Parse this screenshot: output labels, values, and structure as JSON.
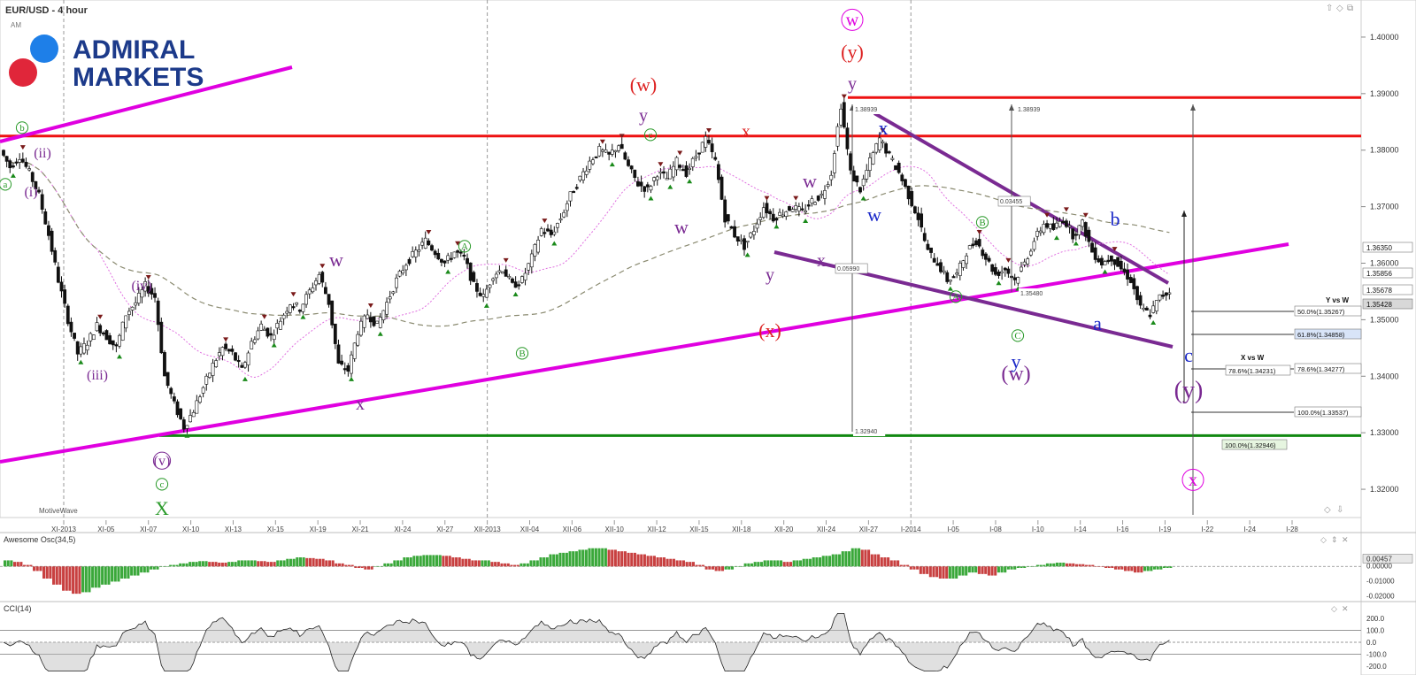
{
  "header": {
    "symbol": "EUR/USD - 4 hour",
    "sub": "AM"
  },
  "logo": {
    "line1": "ADMIRAL",
    "line2": "MARKETS"
  },
  "watermark": "MotiveWave",
  "colors": {
    "bull_candle": "#ffffff",
    "bear_candle": "#111111",
    "magenta": "#e000e0",
    "red_line": "#ee1111",
    "green_line": "#118811",
    "purple": "#7a2a92",
    "blue_wave": "#1a28c8",
    "red_wave": "#dd2222",
    "green_circle": "#2a9a2a",
    "logo_blue": "#1c3a8a",
    "logo_dot_blue": "#1e7fe8",
    "logo_dot_red": "#e0263a"
  },
  "chart_data": {
    "type": "candlestick",
    "title": "EUR/USD - 4 hour",
    "ylim": [
      1.315,
      1.405
    ],
    "y_ticks": [
      "1.40000",
      "1.39000",
      "1.38000",
      "1.37000",
      "1.36000",
      "1.35000",
      "1.34000",
      "1.33000",
      "1.32000"
    ],
    "price_badges": [
      "1.36350",
      "1.35856",
      "1.35678",
      "1.35428"
    ],
    "x_labels": [
      "XI-2013",
      "XI-05",
      "XI-07",
      "XI-10",
      "XI-13",
      "XI-15",
      "XI-19",
      "XI-21",
      "XI-24",
      "XI-27",
      "XII-2013",
      "XII-04",
      "XII-06",
      "XII-10",
      "XII-12",
      "XII-15",
      "XII-18",
      "XII-20",
      "XII-24",
      "XII-27",
      "I-2014",
      "I-05",
      "I-08",
      "I-10",
      "I-14",
      "I-16",
      "I-19",
      "I-22",
      "I-24",
      "I-28"
    ],
    "price_path": [
      [
        1.38,
        1.377,
        1.379,
        1.376,
        1.372,
        1.365,
        1.357,
        1.35,
        1.344,
        1.346,
        1.349,
        1.347,
        1.345,
        1.351,
        1.353,
        1.356,
        1.354,
        1.34,
        1.335,
        1.331,
        1.334,
        1.338,
        1.342,
        1.345,
        1.344,
        1.341,
        1.346,
        1.349,
        1.347,
        1.35,
        1.353,
        1.352,
        1.355,
        1.358,
        1.353,
        1.342,
        1.341,
        1.348,
        1.351,
        1.349,
        1.353,
        1.357,
        1.36,
        1.362,
        1.364,
        1.362,
        1.36,
        1.362,
        1.361,
        1.356,
        1.354,
        1.358,
        1.359,
        1.356,
        1.357,
        1.361,
        1.366,
        1.365,
        1.368,
        1.372,
        1.375,
        1.378,
        1.38,
        1.379,
        1.381,
        1.377,
        1.374,
        1.373,
        1.376,
        1.375,
        1.378,
        1.376,
        1.379,
        1.382,
        1.378,
        1.368,
        1.365,
        1.363,
        1.366,
        1.37,
        1.368,
        1.369,
        1.37,
        1.369,
        1.371,
        1.372,
        1.376,
        1.388,
        1.376,
        1.373,
        1.378,
        1.382,
        1.379,
        1.376,
        1.372,
        1.368,
        1.362,
        1.36,
        1.357,
        1.358,
        1.362,
        1.364,
        1.361,
        1.358,
        1.359,
        1.357,
        1.36,
        1.364,
        1.367,
        1.366,
        1.368,
        1.365,
        1.367,
        1.362,
        1.36,
        1.361,
        1.359,
        1.357,
        1.352,
        1.351,
        1.354,
        1.355
      ]
    ],
    "x": [
      0,
      0
    ],
    "series": [],
    "levels": [
      {
        "name": "red-upper",
        "value": 1.3893
      },
      {
        "name": "red-lower",
        "value": 1.3825
      },
      {
        "name": "green-support",
        "value": 1.3295
      }
    ],
    "measure_labels": [
      "1.38939",
      "1.38939",
      "0.03455",
      "0.05990",
      "1.35480",
      "1.32940"
    ],
    "fib_box_y_vs_w": {
      "title": "Y vs W",
      "items": [
        "50.0%(1.35267)",
        "61.8%(1.34858)",
        "78.6%(1.34277)",
        "100.0%(1.33537)"
      ]
    },
    "fib_box_x_vs_w": {
      "title": "X vs W",
      "items": [
        "78.6%(1.34231)",
        "100.0%(1.32946)"
      ]
    },
    "wave_labels": {
      "top": [
        "w",
        "(y)",
        "y",
        "(w)",
        "y",
        "x",
        "(x)",
        "b",
        "y",
        "(w)",
        "c",
        "(y)",
        "x"
      ],
      "blue": [
        "x",
        "w",
        "b",
        "a",
        "y",
        "c"
      ],
      "purple": [
        "(ii)",
        "(i)",
        "(iv)",
        "(iii)",
        "(v)",
        "w",
        "x",
        "w",
        "w",
        "x",
        "y",
        "(x)",
        "(W)",
        "(y)"
      ],
      "circled": [
        "b",
        "a",
        "c",
        "A",
        "B",
        "B",
        "C",
        "A",
        "c",
        "v",
        "c"
      ],
      "green": [
        "X"
      ]
    },
    "indicators": {
      "ao_title": "Awesome Osc(34,5)",
      "ao_ticks": [
        "0.00000",
        "0.00457",
        "-0.01000",
        "-0.02000"
      ],
      "ao_values": [
        0.004,
        0.003,
        0.001,
        -0.003,
        -0.008,
        -0.012,
        -0.016,
        -0.018,
        -0.017,
        -0.014,
        -0.012,
        -0.01,
        -0.008,
        -0.006,
        -0.004,
        -0.002,
        0.0,
        0.001,
        0.002,
        0.003,
        0.0035,
        0.003,
        0.0025,
        0.003,
        0.004,
        0.004,
        0.0035,
        0.003,
        0.004,
        0.005,
        0.006,
        0.0055,
        0.005,
        0.004,
        0.002,
        0.001,
        -0.001,
        -0.002,
        0.0,
        0.002,
        0.004,
        0.006,
        0.007,
        0.0075,
        0.0075,
        0.007,
        0.006,
        0.005,
        0.004,
        0.004,
        0.003,
        0.002,
        0.001,
        0.002,
        0.004,
        0.006,
        0.008,
        0.009,
        0.01,
        0.011,
        0.012,
        0.012,
        0.011,
        0.01,
        0.009,
        0.008,
        0.007,
        0.006,
        0.005,
        0.004,
        0.003,
        0.001,
        -0.002,
        -0.003,
        -0.002,
        0.0,
        0.002,
        0.003,
        0.004,
        0.004,
        0.003,
        0.004,
        0.005,
        0.006,
        0.007,
        0.008,
        0.01,
        0.012,
        0.011,
        0.008,
        0.006,
        0.004,
        0.001,
        -0.002,
        -0.005,
        -0.007,
        -0.008,
        -0.008,
        -0.006,
        -0.004,
        -0.005,
        -0.006,
        -0.004,
        -0.002,
        -0.001,
        0.0,
        0.001,
        0.002,
        0.0025,
        0.002,
        0.0015,
        0.001,
        0.0,
        -0.001,
        -0.002,
        -0.003,
        -0.004,
        -0.003,
        -0.002,
        -0.001
      ],
      "cci_title": "CCI(14)",
      "cci_ticks": [
        "200.0",
        "100.0",
        "0.0",
        "-100.0",
        "-200.0"
      ]
    }
  }
}
